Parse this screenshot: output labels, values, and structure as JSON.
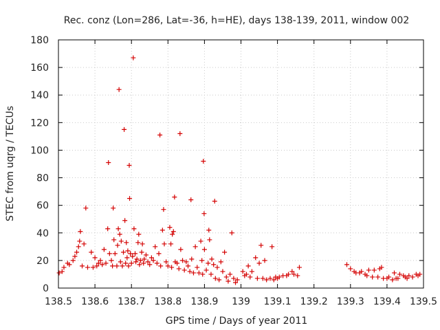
{
  "chart_data": {
    "type": "scatter",
    "title": "Rec. conz (Lon=286, Lat=-36, h=HE), days 138-139, 2011, window 002",
    "xlabel": "GPS time / Days of year 2011",
    "ylabel": "STEC from uqrg / TECUs",
    "xlim": [
      138.5,
      139.5
    ],
    "ylim": [
      0,
      180
    ],
    "xticks": [
      "138.5",
      "138.6",
      "138.7",
      "138.8",
      "138.9",
      "139",
      "139.1",
      "139.2",
      "139.3",
      "139.4",
      "139.5"
    ],
    "yticks": [
      "0",
      "20",
      "40",
      "60",
      "80",
      "100",
      "120",
      "140",
      "160",
      "180"
    ],
    "grid": true,
    "marker": "+",
    "color": "#d40000",
    "points": [
      [
        138.502,
        11
      ],
      [
        138.51,
        12
      ],
      [
        138.515,
        15
      ],
      [
        138.525,
        18
      ],
      [
        138.53,
        17
      ],
      [
        138.54,
        20
      ],
      [
        138.545,
        23
      ],
      [
        138.55,
        26
      ],
      [
        138.555,
        30
      ],
      [
        138.558,
        34
      ],
      [
        138.56,
        41
      ],
      [
        138.565,
        16
      ],
      [
        138.57,
        32
      ],
      [
        138.575,
        58
      ],
      [
        138.58,
        15
      ],
      [
        138.59,
        26
      ],
      [
        138.595,
        15
      ],
      [
        138.6,
        22
      ],
      [
        138.605,
        16
      ],
      [
        138.61,
        18
      ],
      [
        138.615,
        20
      ],
      [
        138.62,
        17
      ],
      [
        138.625,
        28
      ],
      [
        138.63,
        18
      ],
      [
        138.635,
        43
      ],
      [
        138.637,
        91
      ],
      [
        138.64,
        25
      ],
      [
        138.645,
        20
      ],
      [
        138.648,
        16
      ],
      [
        138.65,
        58
      ],
      [
        138.652,
        35
      ],
      [
        138.655,
        25
      ],
      [
        138.66,
        16
      ],
      [
        138.662,
        31
      ],
      [
        138.664,
        43
      ],
      [
        138.666,
        144
      ],
      [
        138.668,
        39
      ],
      [
        138.67,
        19
      ],
      [
        138.672,
        34
      ],
      [
        138.675,
        16
      ],
      [
        138.678,
        26
      ],
      [
        138.68,
        115
      ],
      [
        138.682,
        49
      ],
      [
        138.684,
        18
      ],
      [
        138.686,
        33
      ],
      [
        138.688,
        22
      ],
      [
        138.69,
        27
      ],
      [
        138.692,
        16
      ],
      [
        138.694,
        89
      ],
      [
        138.695,
        65
      ],
      [
        138.697,
        25
      ],
      [
        138.7,
        18
      ],
      [
        138.703,
        23
      ],
      [
        138.705,
        167
      ],
      [
        138.707,
        43
      ],
      [
        138.71,
        25
      ],
      [
        138.712,
        19
      ],
      [
        138.715,
        21
      ],
      [
        138.718,
        33
      ],
      [
        138.72,
        39
      ],
      [
        138.722,
        17
      ],
      [
        138.725,
        20
      ],
      [
        138.728,
        26
      ],
      [
        138.73,
        32
      ],
      [
        138.733,
        18
      ],
      [
        138.735,
        21
      ],
      [
        138.74,
        24
      ],
      [
        138.745,
        19
      ],
      [
        138.75,
        17
      ],
      [
        138.755,
        22
      ],
      [
        138.76,
        20
      ],
      [
        138.765,
        30
      ],
      [
        138.77,
        18
      ],
      [
        138.775,
        25
      ],
      [
        138.778,
        111
      ],
      [
        138.78,
        16
      ],
      [
        138.785,
        42
      ],
      [
        138.788,
        57
      ],
      [
        138.79,
        32
      ],
      [
        138.795,
        19
      ],
      [
        138.8,
        16
      ],
      [
        138.805,
        44
      ],
      [
        138.808,
        32
      ],
      [
        138.81,
        15
      ],
      [
        138.812,
        39
      ],
      [
        138.815,
        41
      ],
      [
        138.818,
        66
      ],
      [
        138.82,
        19
      ],
      [
        138.825,
        18
      ],
      [
        138.83,
        14
      ],
      [
        138.833,
        112
      ],
      [
        138.835,
        28
      ],
      [
        138.84,
        20
      ],
      [
        138.845,
        13
      ],
      [
        138.85,
        19
      ],
      [
        138.855,
        16
      ],
      [
        138.86,
        12
      ],
      [
        138.863,
        64
      ],
      [
        138.865,
        21
      ],
      [
        138.87,
        11
      ],
      [
        138.875,
        30
      ],
      [
        138.88,
        15
      ],
      [
        138.885,
        11
      ],
      [
        138.89,
        34
      ],
      [
        138.893,
        20
      ],
      [
        138.895,
        10
      ],
      [
        138.897,
        92
      ],
      [
        138.899,
        54
      ],
      [
        138.9,
        28
      ],
      [
        138.905,
        13
      ],
      [
        138.91,
        18
      ],
      [
        138.912,
        42
      ],
      [
        138.914,
        35
      ],
      [
        138.918,
        10
      ],
      [
        138.92,
        21
      ],
      [
        138.925,
        17
      ],
      [
        138.928,
        63
      ],
      [
        138.93,
        7
      ],
      [
        138.935,
        15
      ],
      [
        138.94,
        6
      ],
      [
        138.945,
        19
      ],
      [
        138.95,
        12
      ],
      [
        138.955,
        26
      ],
      [
        138.96,
        8
      ],
      [
        138.965,
        5
      ],
      [
        138.97,
        10
      ],
      [
        138.975,
        40
      ],
      [
        138.98,
        7
      ],
      [
        138.985,
        4
      ],
      [
        138.99,
        6
      ],
      [
        139.005,
        12
      ],
      [
        139.01,
        9
      ],
      [
        139.015,
        10
      ],
      [
        139.02,
        16
      ],
      [
        139.025,
        8
      ],
      [
        139.03,
        12
      ],
      [
        139.04,
        22
      ],
      [
        139.045,
        7
      ],
      [
        139.05,
        18
      ],
      [
        139.055,
        31
      ],
      [
        139.06,
        7
      ],
      [
        139.065,
        20
      ],
      [
        139.07,
        6
      ],
      [
        139.08,
        7
      ],
      [
        139.085,
        30
      ],
      [
        139.09,
        6
      ],
      [
        139.095,
        8
      ],
      [
        139.1,
        7
      ],
      [
        139.105,
        8
      ],
      [
        139.115,
        9
      ],
      [
        139.125,
        9
      ],
      [
        139.13,
        10
      ],
      [
        139.14,
        12
      ],
      [
        139.145,
        10
      ],
      [
        139.155,
        9
      ],
      [
        139.16,
        15
      ],
      [
        139.29,
        17
      ],
      [
        139.3,
        14
      ],
      [
        139.31,
        12
      ],
      [
        139.315,
        11
      ],
      [
        139.325,
        11
      ],
      [
        139.33,
        12
      ],
      [
        139.34,
        10
      ],
      [
        139.345,
        9
      ],
      [
        139.35,
        13
      ],
      [
        139.36,
        8
      ],
      [
        139.365,
        13
      ],
      [
        139.375,
        8
      ],
      [
        139.38,
        14
      ],
      [
        139.385,
        15
      ],
      [
        139.39,
        7
      ],
      [
        139.4,
        7
      ],
      [
        139.405,
        8
      ],
      [
        139.415,
        6
      ],
      [
        139.42,
        11
      ],
      [
        139.425,
        7
      ],
      [
        139.43,
        7
      ],
      [
        139.435,
        10
      ],
      [
        139.445,
        9
      ],
      [
        139.45,
        8
      ],
      [
        139.455,
        7
      ],
      [
        139.46,
        9
      ],
      [
        139.47,
        8
      ],
      [
        139.48,
        10
      ],
      [
        139.485,
        9
      ],
      [
        139.49,
        10
      ]
    ]
  }
}
